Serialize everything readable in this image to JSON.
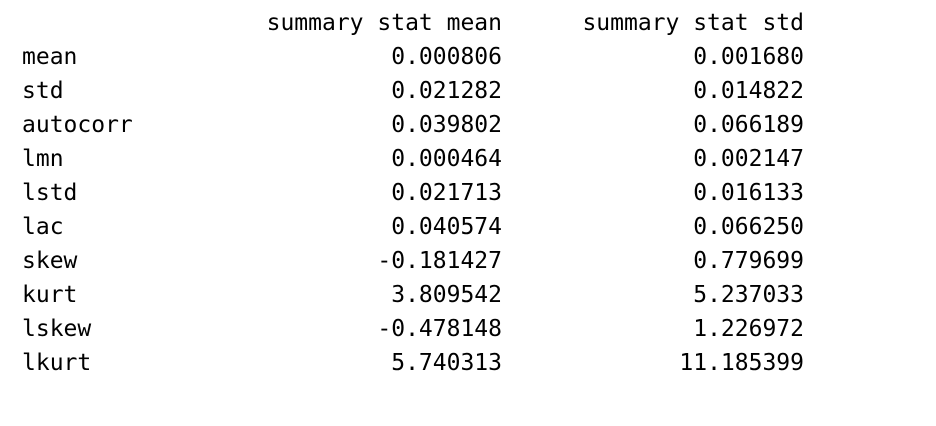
{
  "table": {
    "columns": [
      "summary stat mean",
      "summary stat std"
    ],
    "rows": [
      {
        "label": "mean",
        "mean": "0.000806",
        "std": "0.001680"
      },
      {
        "label": "std",
        "mean": "0.021282",
        "std": "0.014822"
      },
      {
        "label": "autocorr",
        "mean": "0.039802",
        "std": "0.066189"
      },
      {
        "label": "lmn",
        "mean": "0.000464",
        "std": "0.002147"
      },
      {
        "label": "lstd",
        "mean": "0.021713",
        "std": "0.016133"
      },
      {
        "label": "lac",
        "mean": "0.040574",
        "std": "0.066250"
      },
      {
        "label": "skew",
        "mean": "-0.181427",
        "std": "0.779699"
      },
      {
        "label": "kurt",
        "mean": "3.809542",
        "std": "5.237033"
      },
      {
        "label": "lskew",
        "mean": "-0.478148",
        "std": "1.226972"
      },
      {
        "label": "lkurt",
        "mean": "5.740313",
        "std": "11.185399"
      }
    ]
  }
}
